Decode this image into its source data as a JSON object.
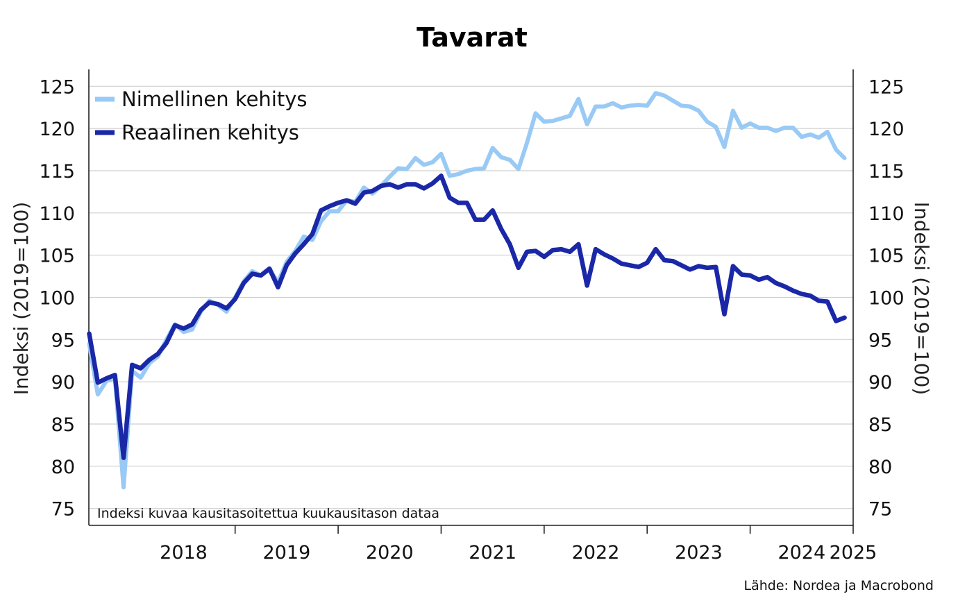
{
  "chart_data": {
    "type": "line",
    "title": "Tavarat",
    "ylabel_left": "Indeksi (2019=100)",
    "ylabel_right": "Indeksi (2019=100)",
    "ylim": [
      73,
      127
    ],
    "yticks": [
      75,
      80,
      85,
      90,
      95,
      100,
      105,
      110,
      115,
      120,
      125
    ],
    "xlim": [
      2017.58,
      2025.0
    ],
    "xticks": [
      2018,
      2019,
      2020,
      2021,
      2022,
      2023,
      2024,
      2025
    ],
    "x_labels": [
      "2018",
      "2019",
      "2020",
      "2021",
      "2022",
      "2023",
      "2024",
      "2025"
    ],
    "grid": true,
    "legend_position": "top-left",
    "annotation": "Indeksi kuvaa kausitasoitettua kuukausitason dataa",
    "source": "Lähde: Nordea ja Macrobond",
    "x_start": "2017-08",
    "series": [
      {
        "name": "Nimellinen kehitys",
        "color": "#99caf5",
        "values": [
          94.5,
          88.5,
          90.1,
          90.4,
          77.5,
          91.3,
          90.5,
          92.2,
          93.0,
          95.0,
          96.8,
          95.9,
          96.2,
          98.3,
          99.6,
          99.1,
          98.3,
          100.0,
          101.9,
          103.1,
          102.6,
          103.3,
          101.8,
          104.2,
          105.5,
          107.2,
          106.8,
          109.0,
          110.2,
          110.2,
          111.5,
          111.3,
          113.0,
          112.3,
          113.2,
          114.3,
          115.3,
          115.2,
          116.5,
          115.7,
          116.0,
          117.0,
          114.4,
          114.6,
          115.0,
          115.2,
          115.3,
          117.7,
          116.6,
          116.3,
          115.2,
          118.3,
          121.8,
          120.8,
          120.9,
          121.2,
          121.5,
          123.5,
          120.5,
          122.6,
          122.6,
          123.0,
          122.5,
          122.7,
          122.8,
          122.7,
          124.2,
          123.9,
          123.3,
          122.7,
          122.6,
          122.1,
          120.8,
          120.2,
          117.8,
          122.1,
          120.1,
          120.6,
          120.1,
          120.1,
          119.7,
          120.1,
          120.1,
          119.0,
          119.3,
          118.9,
          119.6,
          117.5,
          116.5
        ]
      },
      {
        "name": "Reaalinen kehitys",
        "color": "#1a28a8",
        "values": [
          95.7,
          89.9,
          90.4,
          90.8,
          81.0,
          92.0,
          91.6,
          92.6,
          93.3,
          94.6,
          96.7,
          96.3,
          96.8,
          98.5,
          99.4,
          99.2,
          98.7,
          99.8,
          101.7,
          102.8,
          102.6,
          103.4,
          101.2,
          103.8,
          105.2,
          106.3,
          107.5,
          110.3,
          110.8,
          111.2,
          111.5,
          111.1,
          112.4,
          112.6,
          113.2,
          113.4,
          113.0,
          113.4,
          113.4,
          112.9,
          113.5,
          114.4,
          111.8,
          111.2,
          111.2,
          109.2,
          109.2,
          110.3,
          108.1,
          106.3,
          103.5,
          105.4,
          105.5,
          104.8,
          105.6,
          105.7,
          105.4,
          106.3,
          101.4,
          105.7,
          105.1,
          104.6,
          104.0,
          103.8,
          103.6,
          104.1,
          105.7,
          104.4,
          104.3,
          103.8,
          103.3,
          103.7,
          103.5,
          103.6,
          98.0,
          103.7,
          102.7,
          102.6,
          102.1,
          102.4,
          101.7,
          101.3,
          100.8,
          100.4,
          100.2,
          99.6,
          99.5,
          97.2,
          97.6
        ]
      }
    ]
  }
}
